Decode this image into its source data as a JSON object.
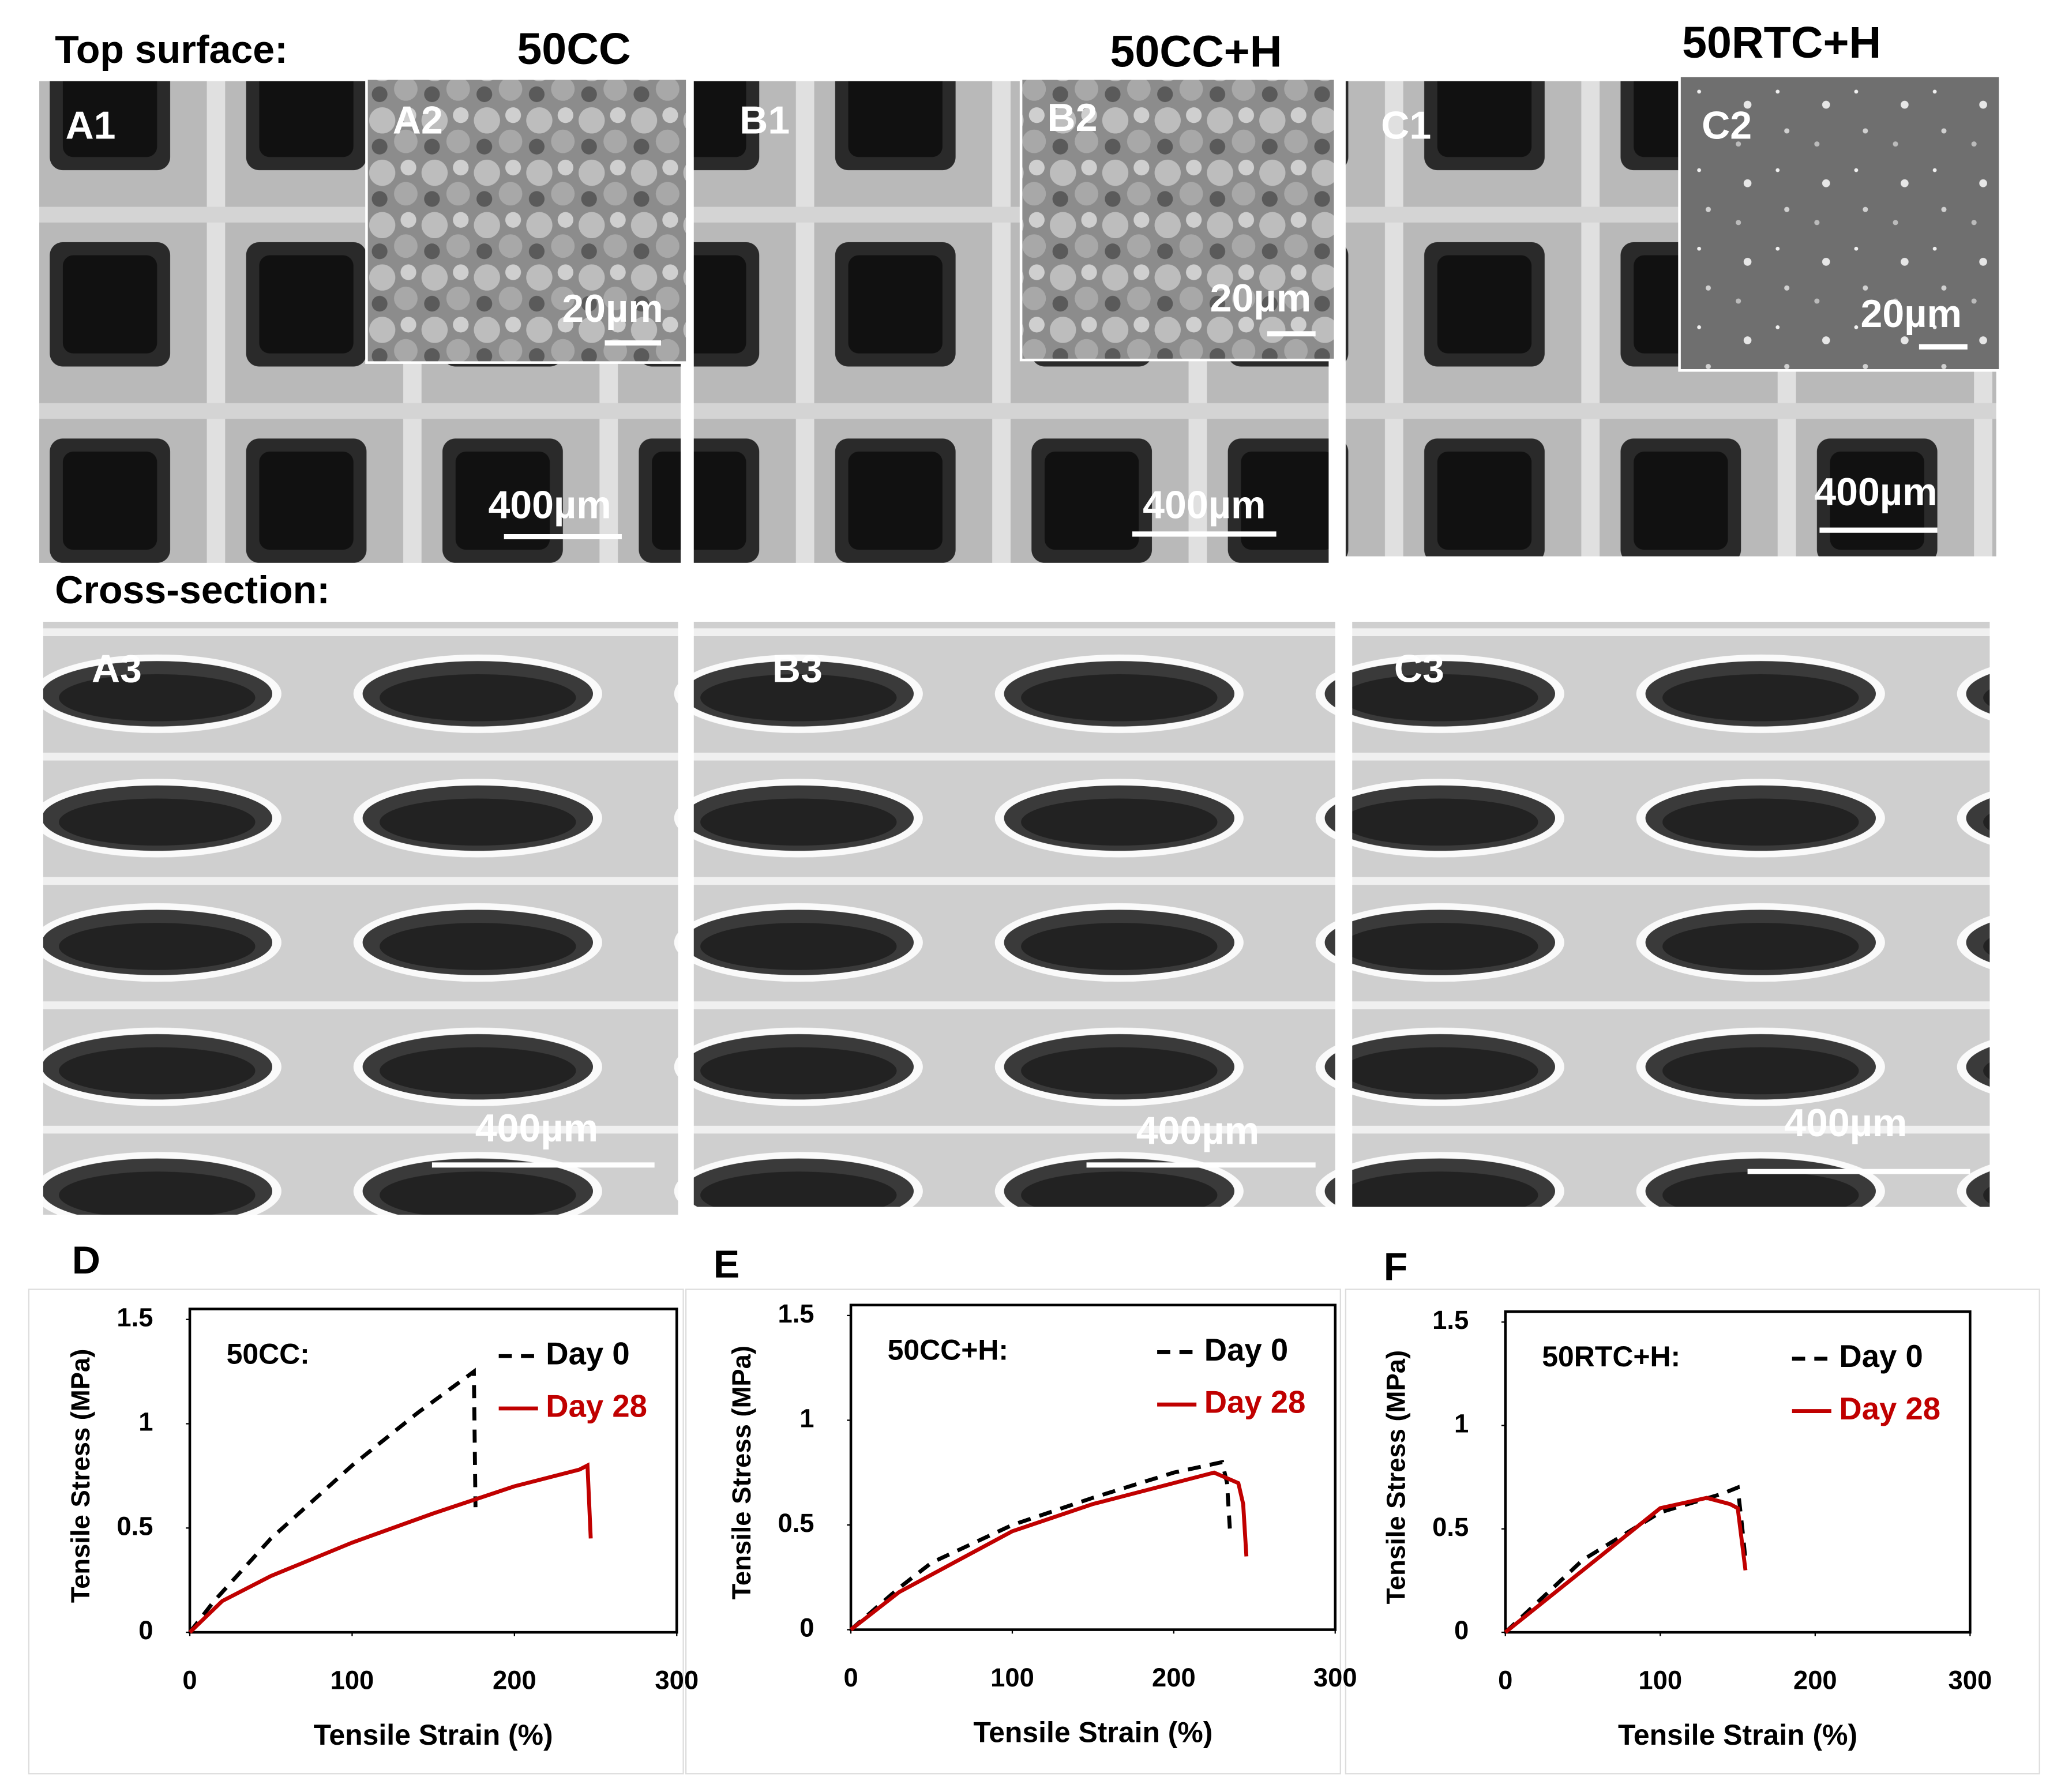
{
  "figure": {
    "top_surface_label": "Top surface:",
    "cross_section_label": "Cross-section:",
    "groups": [
      "50CC",
      "50CC+H",
      "50RTC+H"
    ],
    "panels": [
      {
        "label": "A1",
        "scale_bar": "400µm"
      },
      {
        "label": "A2",
        "scale_bar": "20µm"
      },
      {
        "label": "B1",
        "scale_bar": "400µm"
      },
      {
        "label": "B2",
        "scale_bar": "20µm"
      },
      {
        "label": "C1",
        "scale_bar": "400µm"
      },
      {
        "label": "C2",
        "scale_bar": "20µm"
      },
      {
        "label": "A3",
        "scale_bar": "400µm"
      },
      {
        "label": "B3",
        "scale_bar": "400µm"
      },
      {
        "label": "C3",
        "scale_bar": "400µm"
      }
    ]
  },
  "chart_data": [
    {
      "type": "line",
      "panel": "D",
      "title": "50CC:",
      "xlabel": "Tensile Strain (%)",
      "ylabel": "Tensile Stress (MPa)",
      "xlim": [
        0,
        300
      ],
      "ylim": [
        0,
        1.5
      ],
      "xticks": [
        0,
        100,
        200,
        300
      ],
      "yticks": [
        0,
        0.5,
        1,
        1.5
      ],
      "legend": "upper right",
      "series": [
        {
          "name": "Day 0",
          "color": "#000000",
          "linestyle": "dashed",
          "x": [
            0,
            15,
            50,
            100,
            140,
            175,
            176
          ],
          "values": [
            0,
            0.15,
            0.45,
            0.8,
            1.05,
            1.25,
            0.6
          ]
        },
        {
          "name": "Day 28",
          "color": "#c00000",
          "linestyle": "solid",
          "x": [
            0,
            20,
            50,
            100,
            150,
            200,
            240,
            245,
            247
          ],
          "values": [
            0,
            0.15,
            0.27,
            0.43,
            0.57,
            0.7,
            0.78,
            0.8,
            0.45
          ]
        }
      ]
    },
    {
      "type": "line",
      "panel": "E",
      "title": "50CC+H:",
      "xlabel": "Tensile Strain (%)",
      "ylabel": "Tensile Stress (MPa)",
      "xlim": [
        0,
        300
      ],
      "ylim": [
        0,
        1.5
      ],
      "xticks": [
        0,
        100,
        200,
        300
      ],
      "yticks": [
        0,
        0.5,
        1,
        1.5
      ],
      "legend": "upper right",
      "series": [
        {
          "name": "Day 0",
          "color": "#000000",
          "linestyle": "dashed",
          "x": [
            0,
            30,
            50,
            100,
            150,
            200,
            230,
            233,
            235
          ],
          "values": [
            0,
            0.2,
            0.32,
            0.5,
            0.63,
            0.75,
            0.8,
            0.7,
            0.45
          ]
        },
        {
          "name": "Day 28",
          "color": "#c00000",
          "linestyle": "solid",
          "x": [
            0,
            30,
            100,
            150,
            200,
            225,
            240,
            243,
            245
          ],
          "values": [
            0,
            0.18,
            0.47,
            0.6,
            0.7,
            0.75,
            0.7,
            0.6,
            0.35
          ]
        }
      ]
    },
    {
      "type": "line",
      "panel": "F",
      "title": "50RTC+H:",
      "xlabel": "Tensile Strain (%)",
      "ylabel": "Tensile Stress (MPa)",
      "xlim": [
        0,
        300
      ],
      "ylim": [
        0,
        1.5
      ],
      "xticks": [
        0,
        100,
        200,
        300
      ],
      "yticks": [
        0,
        0.5,
        1,
        1.5
      ],
      "legend": "upper right",
      "series": [
        {
          "name": "Day 0",
          "color": "#000000",
          "linestyle": "dashed",
          "x": [
            0,
            50,
            100,
            140,
            150,
            153,
            155
          ],
          "values": [
            0,
            0.35,
            0.58,
            0.67,
            0.7,
            0.5,
            0.35
          ]
        },
        {
          "name": "Day 28",
          "color": "#c00000",
          "linestyle": "solid",
          "x": [
            0,
            50,
            100,
            130,
            145,
            150,
            155
          ],
          "values": [
            0,
            0.3,
            0.6,
            0.65,
            0.62,
            0.6,
            0.3
          ]
        }
      ]
    }
  ]
}
